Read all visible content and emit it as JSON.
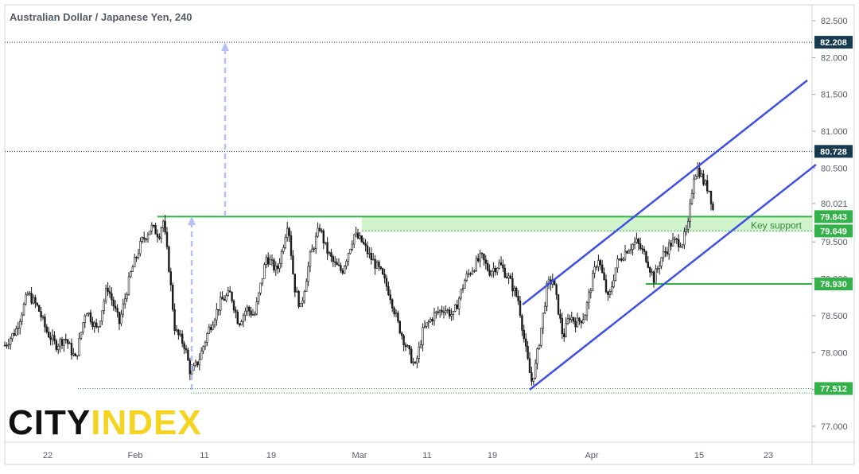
{
  "chart_data": {
    "type": "candlestick",
    "title": "Australian Dollar / Japanese Yen, 240",
    "y_ticks": [
      "82.500",
      "82.000",
      "81.500",
      "81.000",
      "80.500",
      "80.021",
      "79.500",
      "79.000",
      "78.500",
      "78.000",
      "77.500",
      "77.000"
    ],
    "y_tick_values": [
      82.5,
      82.0,
      81.5,
      81.0,
      80.5,
      80.021,
      79.5,
      79.0,
      78.5,
      78.0,
      77.5,
      77.0
    ],
    "x_ticks": [
      "22",
      "Feb",
      "11",
      "19",
      "Mar",
      "11",
      "19",
      "Apr",
      "15",
      "23"
    ],
    "ylim": [
      76.8,
      82.85
    ],
    "price_labels": [
      {
        "text": "82.208",
        "value": 82.208,
        "style": "dark"
      },
      {
        "text": "80.728",
        "value": 80.728,
        "style": "dark"
      },
      {
        "text": "79.843",
        "value": 79.843,
        "style": "green"
      },
      {
        "text": "79.649",
        "value": 79.649,
        "style": "green"
      },
      {
        "text": "78.930",
        "value": 78.93,
        "style": "green"
      },
      {
        "text": "77.512",
        "value": 77.512,
        "style": "green"
      }
    ],
    "annotation": "Key support",
    "zone": {
      "low": 79.649,
      "high": 79.843
    },
    "series": {
      "name": "",
      "keypoints_x": [
        6,
        20,
        35,
        48,
        58,
        70,
        82,
        95,
        108,
        122,
        135,
        150,
        165,
        178,
        190,
        200,
        205,
        212,
        220,
        232,
        240,
        250,
        262,
        278,
        290,
        300,
        310,
        320,
        335,
        348,
        355,
        362,
        370,
        378,
        390,
        402,
        410,
        420,
        430,
        445,
        455,
        465,
        478,
        490,
        500,
        510,
        522,
        532,
        545,
        558,
        570,
        585,
        598,
        605,
        615,
        628,
        640,
        652,
        660,
        668,
        673,
        680,
        688,
        695,
        700,
        708,
        716,
        725,
        735,
        745,
        752,
        765,
        775,
        788,
        800,
        812,
        822,
        832,
        845,
        858,
        865,
        872,
        878,
        885,
        892,
        897
      ],
      "keypoints_y": [
        78.1,
        78.3,
        78.8,
        78.6,
        78.3,
        78.1,
        78.2,
        77.9,
        78.6,
        78.3,
        78.9,
        78.4,
        79.1,
        79.5,
        79.7,
        79.6,
        79.8,
        79.2,
        78.3,
        78.1,
        77.7,
        77.9,
        78.3,
        78.7,
        78.8,
        78.4,
        78.6,
        78.5,
        79.3,
        79.1,
        79.4,
        79.8,
        78.9,
        78.6,
        79.3,
        79.7,
        79.4,
        79.2,
        79.1,
        79.6,
        79.5,
        79.3,
        79.1,
        78.8,
        78.4,
        78.1,
        77.8,
        78.3,
        78.5,
        78.6,
        78.5,
        79.0,
        79.2,
        79.3,
        79.1,
        79.2,
        79.0,
        78.7,
        78.1,
        77.6,
        77.8,
        78.3,
        78.9,
        79.0,
        78.7,
        78.2,
        78.5,
        78.4,
        78.5,
        79.0,
        79.3,
        78.7,
        79.2,
        79.4,
        79.5,
        79.3,
        79.0,
        79.3,
        79.5,
        79.5,
        79.7,
        80.4,
        80.5,
        80.3,
        80.2,
        79.9
      ]
    }
  }
}
